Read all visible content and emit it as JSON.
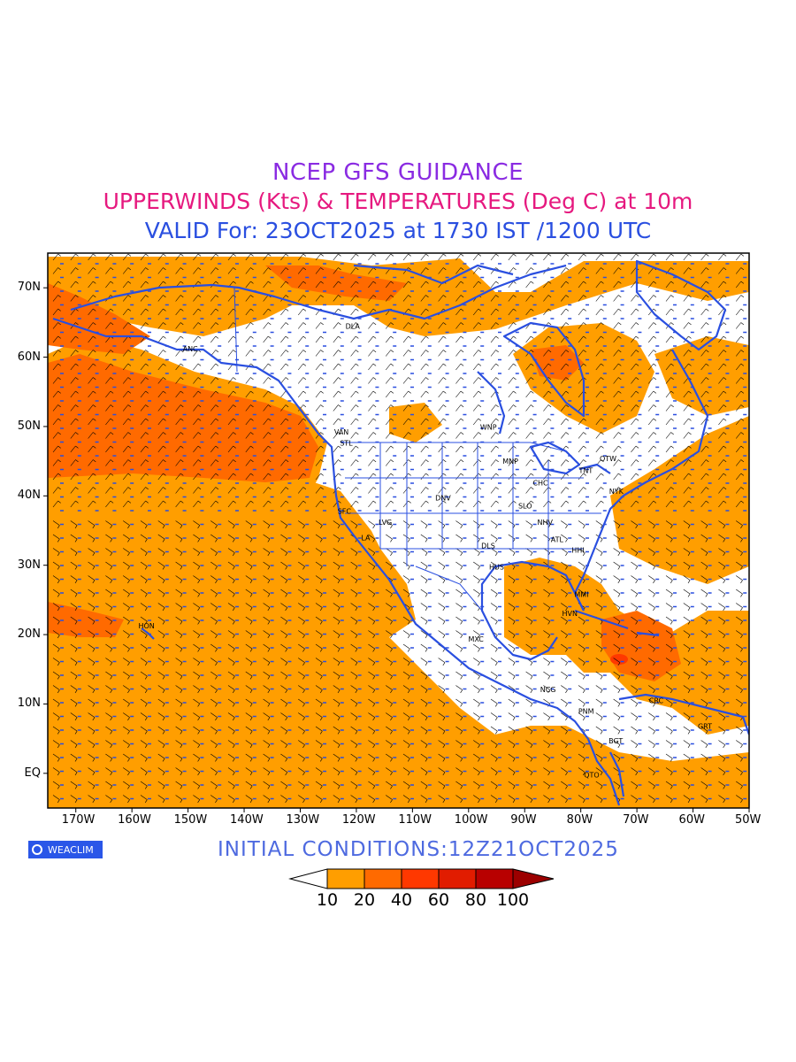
{
  "header": {
    "title_line1": "NCEP GFS GUIDANCE",
    "title_line2": "UPPERWINDS (Kts) & TEMPERATURES (Deg C) at 10m",
    "title_line3": "VALID For: 23OCT2025 at 1730 IST /1200 UTC"
  },
  "map": {
    "lat_labels": [
      "70N",
      "60N",
      "50N",
      "40N",
      "30N",
      "20N",
      "10N",
      "EQ"
    ],
    "lon_labels": [
      "170W",
      "160W",
      "150W",
      "140W",
      "130W",
      "120W",
      "110W",
      "100W",
      "90W",
      "80W",
      "70W",
      "60W",
      "50W"
    ],
    "cities": [
      {
        "code": "ANC",
        "lon": -150,
        "lat": 61.2
      },
      {
        "code": "DLA",
        "lon": -121,
        "lat": 64.5
      },
      {
        "code": "VAN",
        "lon": -123,
        "lat": 49.2
      },
      {
        "code": "STL",
        "lon": -122,
        "lat": 47.6
      },
      {
        "code": "WNP",
        "lon": -97,
        "lat": 49.9
      },
      {
        "code": "MNP",
        "lon": -93,
        "lat": 45
      },
      {
        "code": "OTW",
        "lon": -75.7,
        "lat": 45.4
      },
      {
        "code": "TNT",
        "lon": -79.4,
        "lat": 43.7
      },
      {
        "code": "CHC",
        "lon": -87.6,
        "lat": 41.9
      },
      {
        "code": "NYK",
        "lon": -74,
        "lat": 40.7
      },
      {
        "code": "DNV",
        "lon": -105,
        "lat": 39.7
      },
      {
        "code": "SLO",
        "lon": -90.2,
        "lat": 38.6
      },
      {
        "code": "SFC",
        "lon": -122.4,
        "lat": 37.8
      },
      {
        "code": "LVG",
        "lon": -115.1,
        "lat": 36.2
      },
      {
        "code": "LA",
        "lon": -118.2,
        "lat": 34
      },
      {
        "code": "NHV",
        "lon": -86.8,
        "lat": 36.2
      },
      {
        "code": "ATL",
        "lon": -84.4,
        "lat": 33.7
      },
      {
        "code": "DLS",
        "lon": -96.8,
        "lat": 32.8
      },
      {
        "code": "HHI",
        "lon": -80.7,
        "lat": 32.2
      },
      {
        "code": "HUS",
        "lon": -95.4,
        "lat": 29.8
      },
      {
        "code": "MMI",
        "lon": -80.2,
        "lat": 25.8
      },
      {
        "code": "HVN",
        "lon": -82.4,
        "lat": 23.1
      },
      {
        "code": "HON",
        "lon": -157.9,
        "lat": 21.3
      },
      {
        "code": "MXC",
        "lon": -99.1,
        "lat": 19.4
      },
      {
        "code": "NCG",
        "lon": -86.3,
        "lat": 12.1
      },
      {
        "code": "CRC",
        "lon": -66.9,
        "lat": 10.5
      },
      {
        "code": "PNM",
        "lon": -79.5,
        "lat": 9
      },
      {
        "code": "BGT",
        "lon": -74.1,
        "lat": 4.7
      },
      {
        "code": "QTO",
        "lon": -78.5,
        "lat": -0.2
      },
      {
        "code": "GRT",
        "lon": -58.2,
        "lat": 6.8
      }
    ]
  },
  "initial_conditions": "INITIAL  CONDITIONS:12Z21OCT2025",
  "logo_text": "WEACLIM",
  "colorbar": {
    "labels": [
      "10",
      "20",
      "40",
      "60",
      "80",
      "100"
    ],
    "colors": [
      "#ffffff",
      "#ff9e00",
      "#ff6a00",
      "#ff3800",
      "#e11c00",
      "#b80000",
      "#9c0000"
    ]
  },
  "colors": {
    "wind_10_20": "#ff9e00",
    "wind_20_40": "#ff6a00",
    "coastline": "#2a4fe0",
    "temperature_text": "#2a4fe0"
  }
}
